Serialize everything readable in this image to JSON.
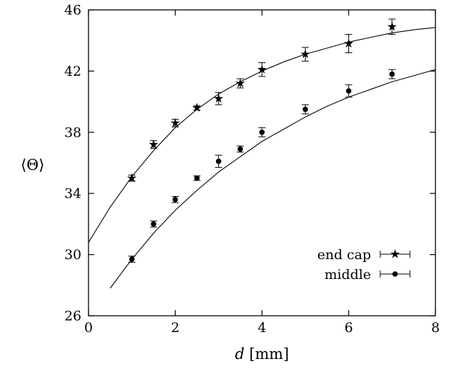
{
  "chart_data": {
    "type": "scatter",
    "xlabel_var": "d",
    "xlabel_unit": "[mm]",
    "ylabel": "⟨Θ⟩",
    "xlim": [
      0,
      8
    ],
    "ylim": [
      26,
      46
    ],
    "xticks": [
      0,
      2,
      4,
      6,
      8
    ],
    "yticks": [
      26,
      30,
      34,
      38,
      42,
      46
    ],
    "grid": false,
    "legend_position": "bottom-right",
    "series": [
      {
        "name": "end cap",
        "marker": "star",
        "x": [
          1,
          1.5,
          2,
          2.5,
          3,
          3.5,
          4,
          5,
          6,
          7
        ],
        "y": [
          35.0,
          37.2,
          38.6,
          39.6,
          40.2,
          41.2,
          42.1,
          43.1,
          43.8,
          44.9
        ],
        "yerr": [
          0.2,
          0.25,
          0.25,
          0.15,
          0.4,
          0.3,
          0.45,
          0.45,
          0.6,
          0.5
        ],
        "fit": [
          [
            0,
            30.8
          ],
          [
            0.5,
            33.1
          ],
          [
            1,
            35.1
          ],
          [
            1.5,
            36.8
          ],
          [
            2,
            38.3
          ],
          [
            2.5,
            39.5
          ],
          [
            3,
            40.5
          ],
          [
            3.5,
            41.3
          ],
          [
            4,
            42.0
          ],
          [
            4.5,
            42.6
          ],
          [
            5,
            43.1
          ],
          [
            5.5,
            43.5
          ],
          [
            6,
            43.9
          ],
          [
            6.5,
            44.2
          ],
          [
            7,
            44.5
          ],
          [
            7.5,
            44.7
          ],
          [
            8,
            44.85
          ]
        ]
      },
      {
        "name": "middle",
        "marker": "circle",
        "x": [
          1,
          1.5,
          2,
          2.5,
          3,
          3.5,
          4,
          5,
          6,
          7
        ],
        "y": [
          29.7,
          32.0,
          33.6,
          35.0,
          36.1,
          36.9,
          38.0,
          39.5,
          40.7,
          41.8
        ],
        "yerr": [
          0.2,
          0.2,
          0.2,
          0.15,
          0.4,
          0.2,
          0.3,
          0.3,
          0.4,
          0.3
        ],
        "fit": [
          [
            0,
            25.6
          ],
          [
            0.5,
            27.8
          ],
          [
            1,
            29.7
          ],
          [
            1.5,
            31.4
          ],
          [
            2,
            32.9
          ],
          [
            2.5,
            34.2
          ],
          [
            3,
            35.4
          ],
          [
            3.5,
            36.4
          ],
          [
            4,
            37.4
          ],
          [
            4.5,
            38.2
          ],
          [
            5,
            39.0
          ],
          [
            5.5,
            39.7
          ],
          [
            6,
            40.3
          ],
          [
            6.5,
            40.8
          ],
          [
            7,
            41.3
          ],
          [
            7.5,
            41.7
          ],
          [
            8,
            42.1
          ]
        ]
      }
    ]
  }
}
